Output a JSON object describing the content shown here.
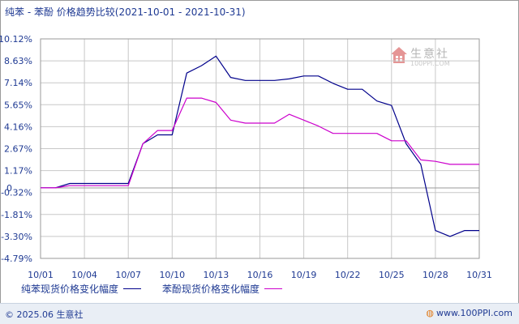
{
  "header": {
    "title": "纯苯 - 苯酚 价格趋势比较(2021-10-01 - 2021-10-31)"
  },
  "watermark": {
    "name": "生意社",
    "url": "100PPI.COM"
  },
  "footer": {
    "copyright": "© 2025.06 生意社",
    "site_url": "www.100PPI.com",
    "site_icon": "globe-icon"
  },
  "colors": {
    "series_1": "#00008b",
    "series_2": "#cc00cc",
    "grid": "#c8c8c8",
    "zero_line": "#999999",
    "text": "#1f3a93"
  },
  "chart_data": {
    "type": "line",
    "title": "纯苯 - 苯酚 价格趋势比较(2021-10-01 - 2021-10-31)",
    "xlabel": "",
    "ylabel": "",
    "x": [
      "10/01",
      "10/02",
      "10/03",
      "10/04",
      "10/05",
      "10/06",
      "10/07",
      "10/08",
      "10/09",
      "10/10",
      "10/11",
      "10/12",
      "10/13",
      "10/14",
      "10/15",
      "10/16",
      "10/17",
      "10/18",
      "10/19",
      "10/20",
      "10/21",
      "10/22",
      "10/23",
      "10/24",
      "10/25",
      "10/26",
      "10/27",
      "10/28",
      "10/29",
      "10/30",
      "10/31"
    ],
    "x_tick_labels": [
      "10/01",
      "10/04",
      "10/07",
      "10/10",
      "10/13",
      "10/16",
      "10/19",
      "10/22",
      "10/25",
      "10/28",
      "10/31"
    ],
    "y_tick_labels": [
      "10.12%",
      "8.63%",
      "7.14%",
      "5.65%",
      "4.16%",
      "2.67%",
      "1.17%",
      "-0.32%",
      "-1.81%",
      "-3.30%",
      "-4.79%"
    ],
    "zero_label": "0",
    "ylim": [
      -4.79,
      10.12
    ],
    "grid": true,
    "legend_position": "bottom",
    "series": [
      {
        "name": "纯苯现货价格变化幅度",
        "color": "#00008b",
        "values": [
          0,
          0,
          0.3,
          0.3,
          0.3,
          0.3,
          0.3,
          3.0,
          3.6,
          3.6,
          7.8,
          8.3,
          8.95,
          7.5,
          7.3,
          7.3,
          7.3,
          7.4,
          7.6,
          7.6,
          7.1,
          6.7,
          6.7,
          5.9,
          5.6,
          3.0,
          1.6,
          -2.9,
          -3.3,
          -2.9,
          -2.9
        ]
      },
      {
        "name": "苯酚现货价格变化幅度",
        "color": "#cc00cc",
        "values": [
          0,
          0,
          0.15,
          0.15,
          0.15,
          0.15,
          0.15,
          3.0,
          3.9,
          3.9,
          6.1,
          6.1,
          5.8,
          4.6,
          4.4,
          4.4,
          4.4,
          5.0,
          4.6,
          4.2,
          3.7,
          3.7,
          3.7,
          3.7,
          3.2,
          3.2,
          1.9,
          1.8,
          1.6,
          1.6,
          1.6
        ]
      }
    ]
  }
}
